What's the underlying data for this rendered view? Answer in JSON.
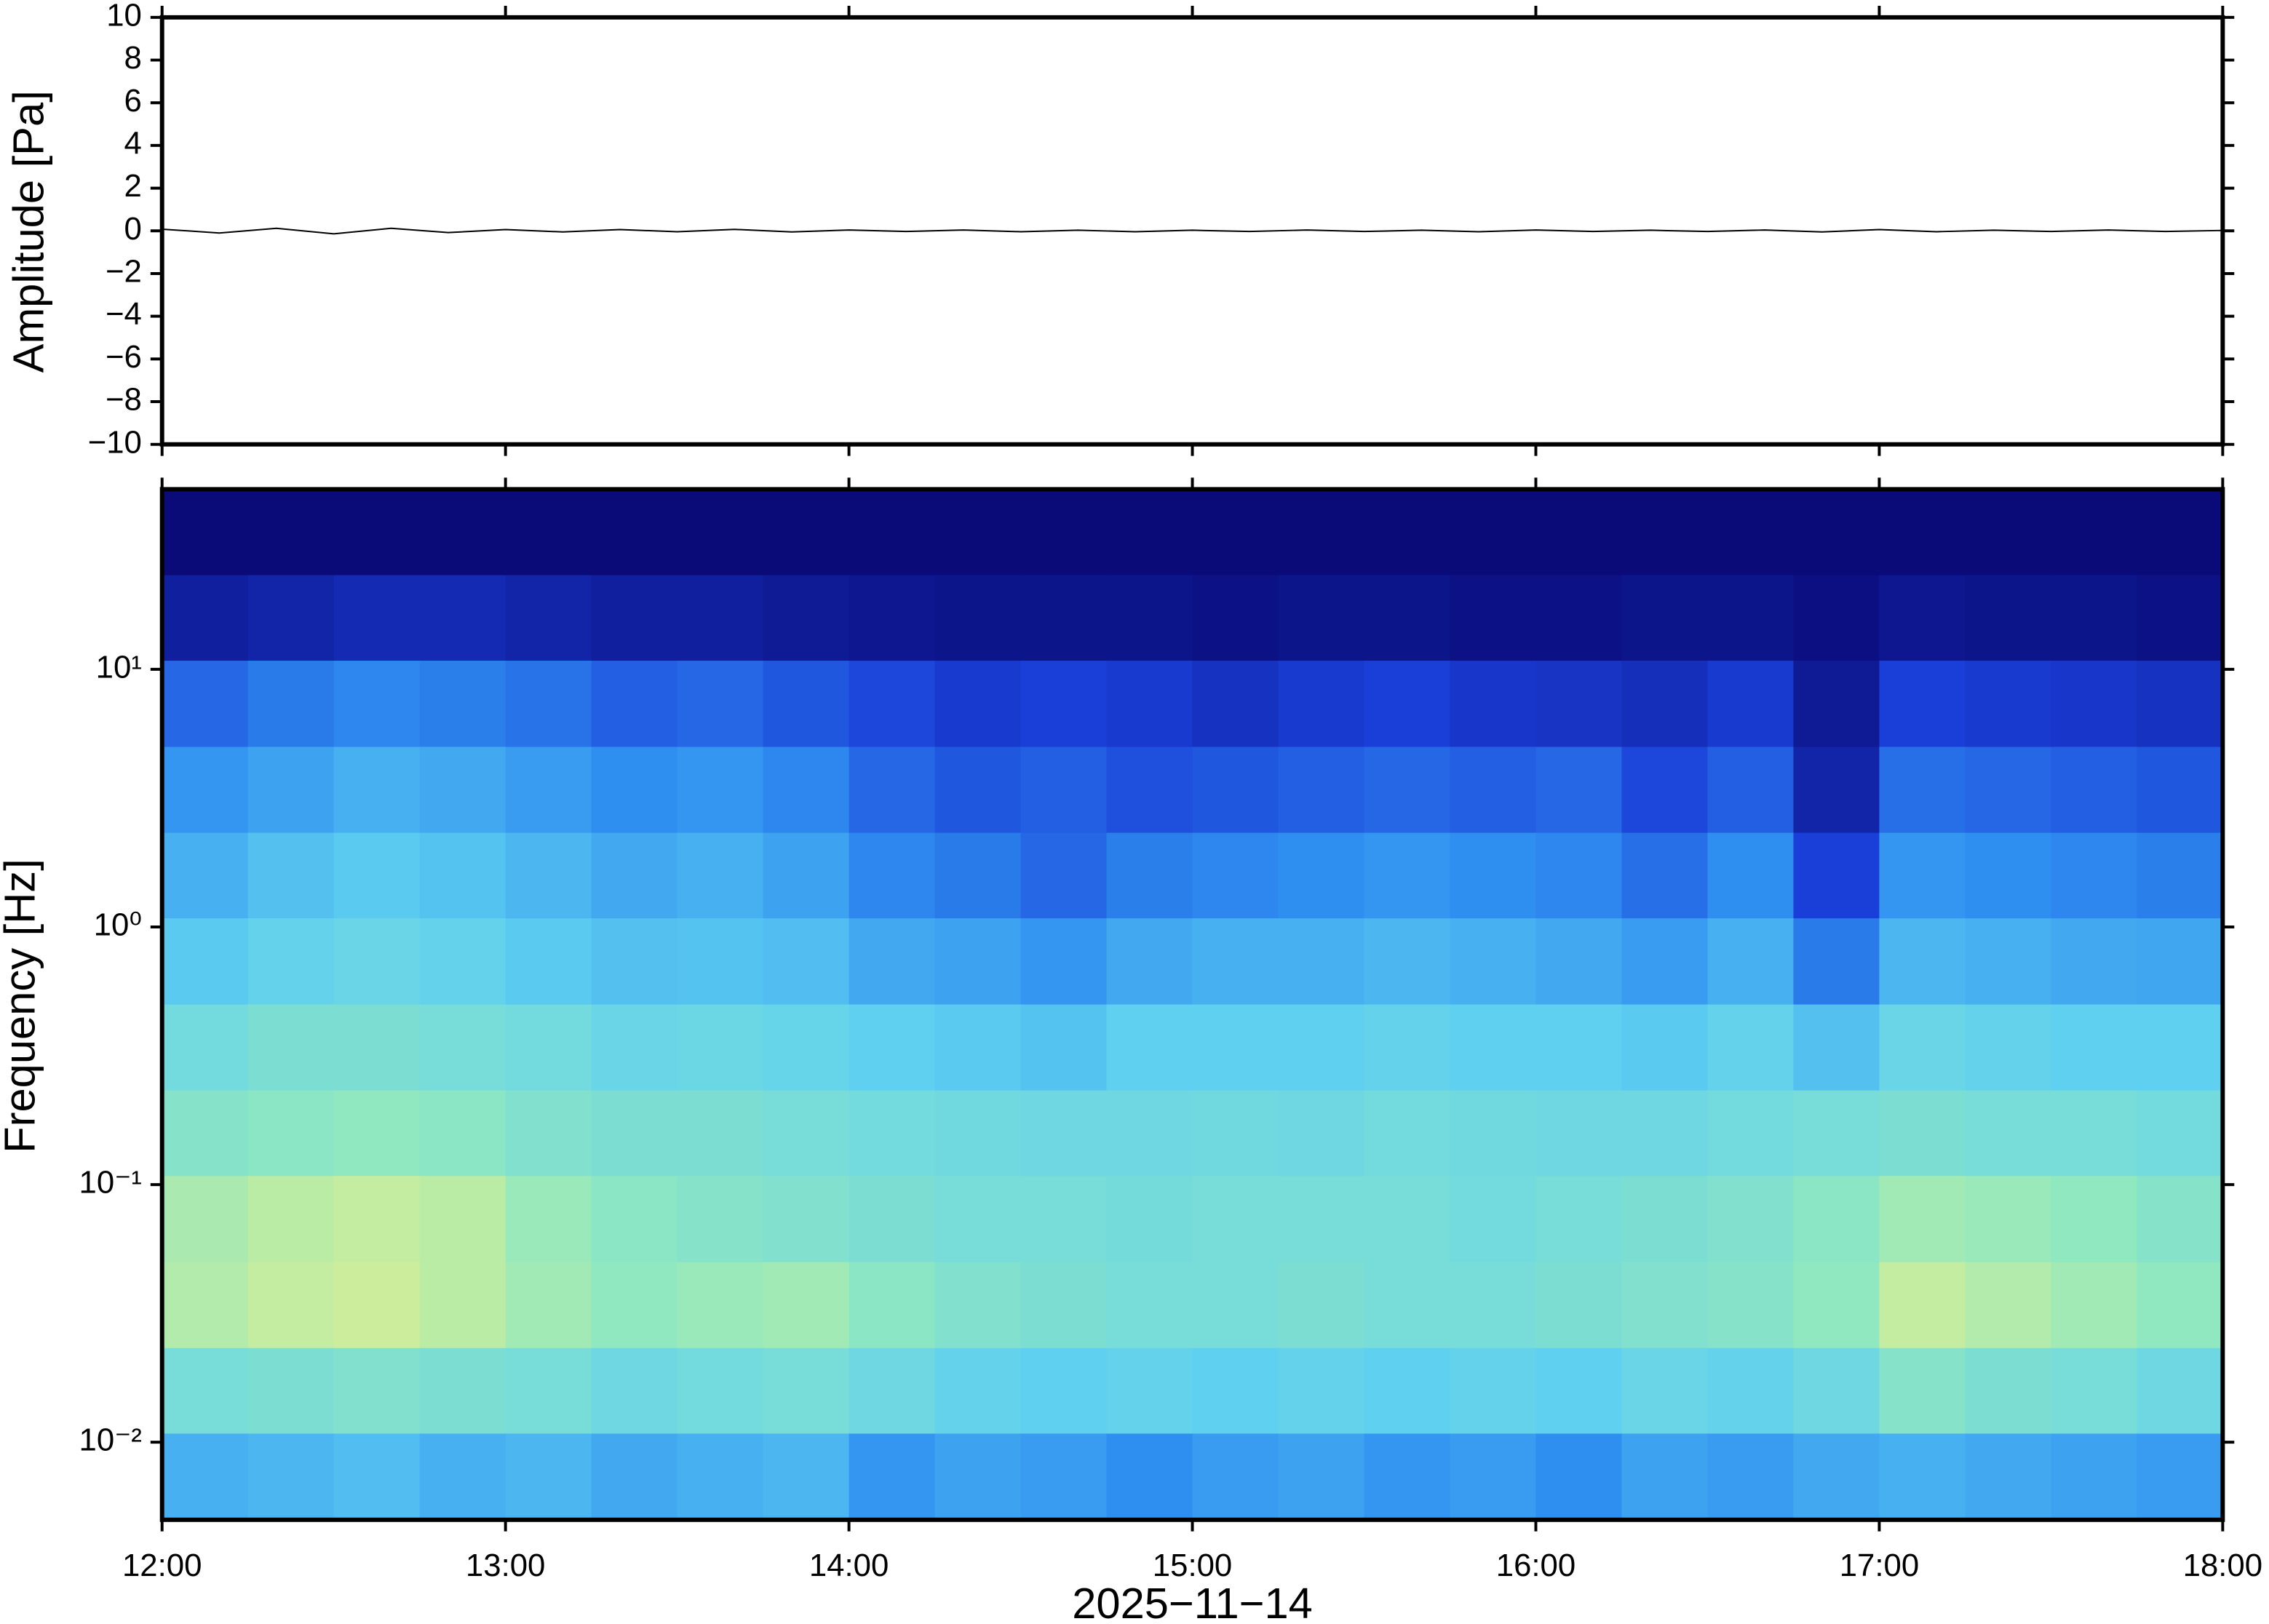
{
  "chart_data": [
    {
      "type": "line",
      "ylabel": "Amplitude [Pa]",
      "color": "#000000",
      "x": [
        "12:00",
        "12:10",
        "12:20",
        "12:30",
        "12:40",
        "12:50",
        "13:00",
        "13:10",
        "13:20",
        "13:30",
        "13:40",
        "13:50",
        "14:00",
        "14:10",
        "14:20",
        "14:30",
        "14:40",
        "14:50",
        "15:00",
        "15:10",
        "15:20",
        "15:30",
        "15:40",
        "15:50",
        "16:00",
        "16:10",
        "16:20",
        "16:30",
        "16:40",
        "16:50",
        "17:00",
        "17:10",
        "17:20",
        "17:30",
        "17:40",
        "17:50",
        "18:00"
      ],
      "values": [
        0.08,
        -0.1,
        0.12,
        -0.14,
        0.12,
        -0.08,
        0.06,
        -0.05,
        0.06,
        -0.04,
        0.07,
        -0.05,
        0.04,
        -0.03,
        0.04,
        -0.04,
        0.03,
        -0.04,
        0.03,
        -0.03,
        0.04,
        -0.03,
        0.03,
        -0.04,
        0.04,
        -0.03,
        0.03,
        -0.03,
        0.04,
        -0.05,
        0.06,
        -0.04,
        0.03,
        -0.03,
        0.04,
        -0.03,
        0.02
      ],
      "xlim": [
        "12:00",
        "18:00"
      ],
      "xticks": [
        "12:00",
        "13:00",
        "14:00",
        "15:00",
        "16:00",
        "17:00",
        "18:00"
      ],
      "ylim": [
        -10,
        10
      ],
      "yticks": [
        {
          "value": -10,
          "label": "−10"
        },
        {
          "value": -8,
          "label": "−8"
        },
        {
          "value": -6,
          "label": "−6"
        },
        {
          "value": -4,
          "label": "−4"
        },
        {
          "value": -2,
          "label": "−2"
        },
        0,
        2,
        4,
        6,
        8,
        10
      ]
    },
    {
      "type": "spectrogram",
      "ylabel": "Frequency [Hz]",
      "xlabel": "2025−11−14",
      "log": true,
      "x": [
        "12:00",
        "12:15",
        "12:30",
        "12:45",
        "13:00",
        "13:15",
        "13:30",
        "13:45",
        "14:00",
        "14:15",
        "14:30",
        "14:45",
        "15:00",
        "15:15",
        "15:30",
        "15:45",
        "16:00",
        "16:15",
        "16:30",
        "16:45",
        "17:00",
        "17:15",
        "17:30",
        "17:45"
      ],
      "y_bins": [
        50,
        23.2,
        10.8,
        5,
        2.32,
        1.08,
        0.5,
        0.232,
        0.108,
        0.05,
        0.0232,
        0.0108,
        0.005
      ],
      "values": [
        [
          0,
          0,
          0,
          0,
          0,
          0,
          0,
          0,
          0,
          0,
          0,
          0,
          0,
          0,
          0,
          0,
          0,
          0,
          0,
          0,
          0,
          0,
          0,
          0
        ],
        [
          0.08,
          0.1,
          0.12,
          0.12,
          0.1,
          0.08,
          0.08,
          0.06,
          0.05,
          0.04,
          0.04,
          0.04,
          0.03,
          0.04,
          0.04,
          0.03,
          0.03,
          0.04,
          0.04,
          0.02,
          0.05,
          0.04,
          0.04,
          0.03
        ],
        [
          0.3,
          0.35,
          0.38,
          0.36,
          0.33,
          0.28,
          0.3,
          0.26,
          0.22,
          0.18,
          0.2,
          0.18,
          0.15,
          0.18,
          0.2,
          0.17,
          0.16,
          0.14,
          0.18,
          0.06,
          0.2,
          0.18,
          0.17,
          0.15
        ],
        [
          0.42,
          0.46,
          0.5,
          0.48,
          0.44,
          0.4,
          0.42,
          0.38,
          0.3,
          0.26,
          0.28,
          0.24,
          0.26,
          0.28,
          0.3,
          0.28,
          0.3,
          0.22,
          0.28,
          0.1,
          0.32,
          0.3,
          0.28,
          0.26
        ],
        [
          0.5,
          0.55,
          0.58,
          0.56,
          0.52,
          0.48,
          0.5,
          0.46,
          0.38,
          0.35,
          0.3,
          0.36,
          0.38,
          0.4,
          0.42,
          0.4,
          0.38,
          0.32,
          0.4,
          0.2,
          0.42,
          0.4,
          0.38,
          0.36
        ],
        [
          0.58,
          0.62,
          0.64,
          0.62,
          0.58,
          0.55,
          0.56,
          0.54,
          0.48,
          0.46,
          0.42,
          0.48,
          0.5,
          0.5,
          0.52,
          0.5,
          0.48,
          0.44,
          0.5,
          0.35,
          0.52,
          0.5,
          0.48,
          0.47
        ],
        [
          0.68,
          0.72,
          0.72,
          0.7,
          0.68,
          0.64,
          0.65,
          0.63,
          0.6,
          0.58,
          0.56,
          0.6,
          0.6,
          0.6,
          0.62,
          0.6,
          0.6,
          0.58,
          0.62,
          0.55,
          0.64,
          0.62,
          0.6,
          0.6
        ],
        [
          0.76,
          0.78,
          0.8,
          0.78,
          0.74,
          0.72,
          0.72,
          0.7,
          0.68,
          0.67,
          0.66,
          0.66,
          0.67,
          0.66,
          0.68,
          0.67,
          0.66,
          0.66,
          0.68,
          0.7,
          0.72,
          0.7,
          0.7,
          0.68
        ],
        [
          0.86,
          0.9,
          0.92,
          0.9,
          0.82,
          0.78,
          0.76,
          0.74,
          0.72,
          0.7,
          0.7,
          0.69,
          0.7,
          0.7,
          0.7,
          0.68,
          0.7,
          0.72,
          0.74,
          0.78,
          0.84,
          0.82,
          0.8,
          0.76
        ],
        [
          0.88,
          0.92,
          0.94,
          0.9,
          0.84,
          0.8,
          0.82,
          0.84,
          0.78,
          0.74,
          0.72,
          0.7,
          0.7,
          0.72,
          0.7,
          0.7,
          0.72,
          0.74,
          0.76,
          0.8,
          0.92,
          0.88,
          0.84,
          0.8
        ],
        [
          0.7,
          0.72,
          0.74,
          0.72,
          0.7,
          0.66,
          0.68,
          0.7,
          0.66,
          0.62,
          0.6,
          0.62,
          0.6,
          0.62,
          0.6,
          0.62,
          0.6,
          0.64,
          0.62,
          0.66,
          0.76,
          0.72,
          0.7,
          0.66
        ],
        [
          0.5,
          0.52,
          0.54,
          0.5,
          0.52,
          0.48,
          0.5,
          0.52,
          0.42,
          0.46,
          0.44,
          0.4,
          0.44,
          0.46,
          0.42,
          0.44,
          0.4,
          0.46,
          0.44,
          0.48,
          0.5,
          0.48,
          0.46,
          0.44
        ]
      ],
      "zlim": [
        0,
        1
      ],
      "colormap": [
        "#0a0a78",
        "#1a3fd8",
        "#2f8ff0",
        "#5fd0f0",
        "#90e8c0",
        "#e6f08c"
      ],
      "xlim": [
        "12:00",
        "18:00"
      ],
      "xticks": [
        "12:00",
        "13:00",
        "14:00",
        "15:00",
        "16:00",
        "17:00",
        "18:00"
      ],
      "ylim": [
        0.005,
        50
      ],
      "yticks": [
        {
          "value": 0.01,
          "label": "10⁻²"
        },
        {
          "value": 0.1,
          "label": "10⁻¹"
        },
        {
          "value": 1,
          "label": "10⁰"
        },
        {
          "value": 10,
          "label": "10¹"
        }
      ]
    }
  ]
}
